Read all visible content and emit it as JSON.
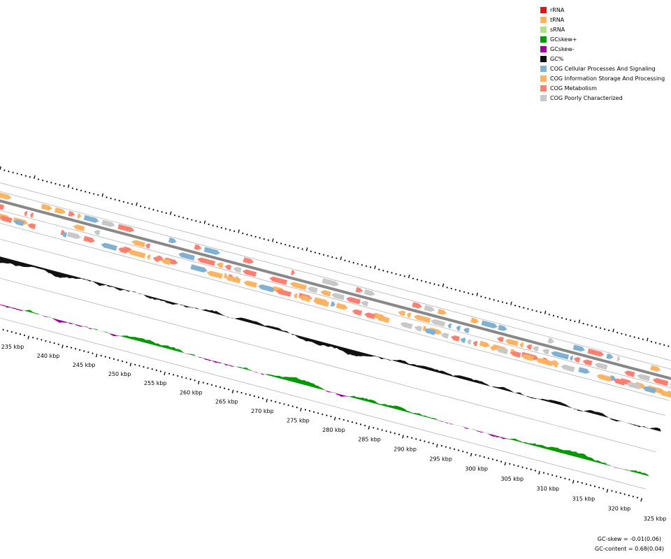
{
  "legend": [
    {
      "label": "rRNA",
      "color": "#d7191c"
    },
    {
      "label": "tRNA",
      "color": "#fdb462"
    },
    {
      "label": "sRNA",
      "color": "#b2df8a"
    },
    {
      "label": "GCskew+",
      "color": "#009900"
    },
    {
      "label": "GCskew-",
      "color": "#990099"
    },
    {
      "label": "GC%",
      "color": "#111111"
    },
    {
      "label": "COG Cellular Processes And Signaling",
      "color": "#80b1d3"
    },
    {
      "label": "COG Information Storage And Processing",
      "color": "#fdb462"
    },
    {
      "label": "COG Metabolism",
      "color": "#fb8072"
    },
    {
      "label": "COG Poorly Characterized",
      "color": "#c8c8c8"
    }
  ],
  "scale_labels": [
    "235 kbp",
    "240 kbp",
    "245 kbp",
    "250 kbp",
    "255 kbp",
    "260 kbp",
    "265 kbp",
    "270 kbp",
    "275 kbp",
    "280 kbp",
    "285 kbp",
    "290 kbp",
    "295 kbp",
    "300 kbp",
    "305 kbp",
    "310 kbp",
    "315 kbp",
    "320 kbp",
    "325 kbp"
  ],
  "footer": [
    "GC-skew = -0.01(0.06)",
    "GC-content = 0.68(0.04)"
  ]
}
